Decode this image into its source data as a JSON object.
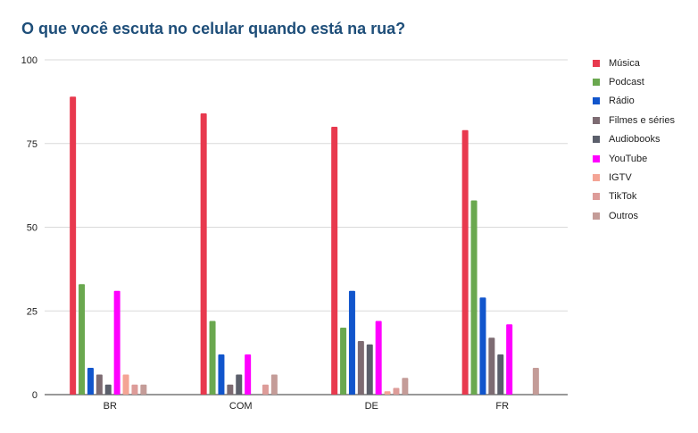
{
  "chart_data": {
    "type": "bar",
    "title": "O que você escuta no celular quando está na rua?",
    "xlabel": "",
    "ylabel": "",
    "ylim": [
      0,
      100
    ],
    "yticks": [
      "0",
      "25",
      "50",
      "75",
      "100"
    ],
    "categories": [
      "BR",
      "COM",
      "DE",
      "FR"
    ],
    "grid": true,
    "legend_position": "right",
    "series": [
      {
        "name": "Música",
        "color": "#e8394e",
        "values": [
          89,
          84,
          80,
          79
        ]
      },
      {
        "name": "Podcast",
        "color": "#6aa84f",
        "values": [
          33,
          22,
          20,
          58
        ]
      },
      {
        "name": "Rádio",
        "color": "#1155cc",
        "values": [
          8,
          12,
          31,
          29
        ]
      },
      {
        "name": "Filmes e séries",
        "color": "#7d6b72",
        "values": [
          6,
          3,
          16,
          17
        ]
      },
      {
        "name": "Audiobooks",
        "color": "#5b5f6b",
        "values": [
          3,
          6,
          15,
          12
        ]
      },
      {
        "name": "YouTube",
        "color": "#ff00ff",
        "values": [
          31,
          12,
          22,
          21
        ]
      },
      {
        "name": "IGTV",
        "color": "#f4a495",
        "values": [
          6,
          0,
          1,
          0
        ]
      },
      {
        "name": "TikTok",
        "color": "#dd9c99",
        "values": [
          3,
          3,
          2,
          0
        ]
      },
      {
        "name": "Outros",
        "color": "#c49c98",
        "values": [
          3,
          6,
          5,
          8
        ]
      }
    ]
  }
}
